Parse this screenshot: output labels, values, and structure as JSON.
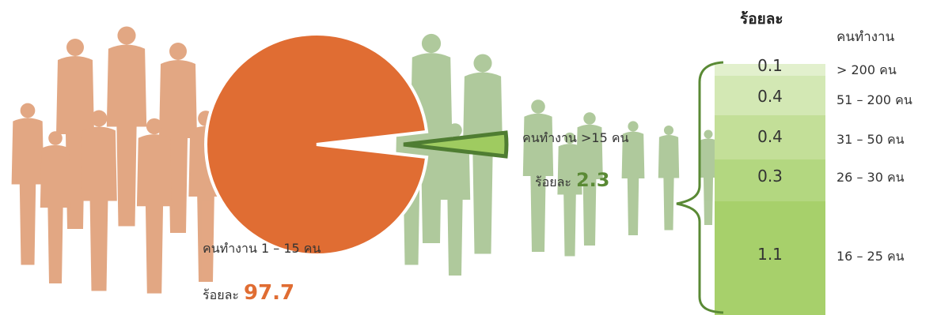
{
  "headers": {
    "percent": "ร้อยละ",
    "workers": "คนทำงาน"
  },
  "pie": {
    "big_label": "คนทำงาน 1 – 15 คน",
    "big_pct_prefix": "ร้อยละ",
    "small_label": "คนทำงาน >15 คน",
    "small_pct_prefix": "ร้อยละ"
  },
  "colors": {
    "orange": "#e06d33",
    "light_green": "#9fcb60",
    "dark_green": "#4f7d32"
  },
  "chart_data": [
    {
      "type": "pie",
      "slices": [
        {
          "label": "คนทำงาน 1 – 15 คน",
          "value": 97.7,
          "value_label": "97.7"
        },
        {
          "label": "คนทำงาน >15 คน",
          "value": 2.3,
          "value_label": "2.3"
        }
      ]
    },
    {
      "type": "bar",
      "stacked": true,
      "categories": [
        "16 – 25 คน",
        "26 – 30 คน",
        "31 – 50 คน",
        "51 – 200 คน",
        "> 200 คน"
      ],
      "values": [
        1.1,
        0.3,
        0.4,
        0.4,
        0.1
      ],
      "value_labels": [
        "1.1",
        "0.3",
        "0.4",
        "0.4",
        "0.1"
      ],
      "segment_colors": [
        "#a7d06b",
        "#b3d780",
        "#c3df98",
        "#d3e8b4",
        "#e2f0cd"
      ]
    }
  ]
}
